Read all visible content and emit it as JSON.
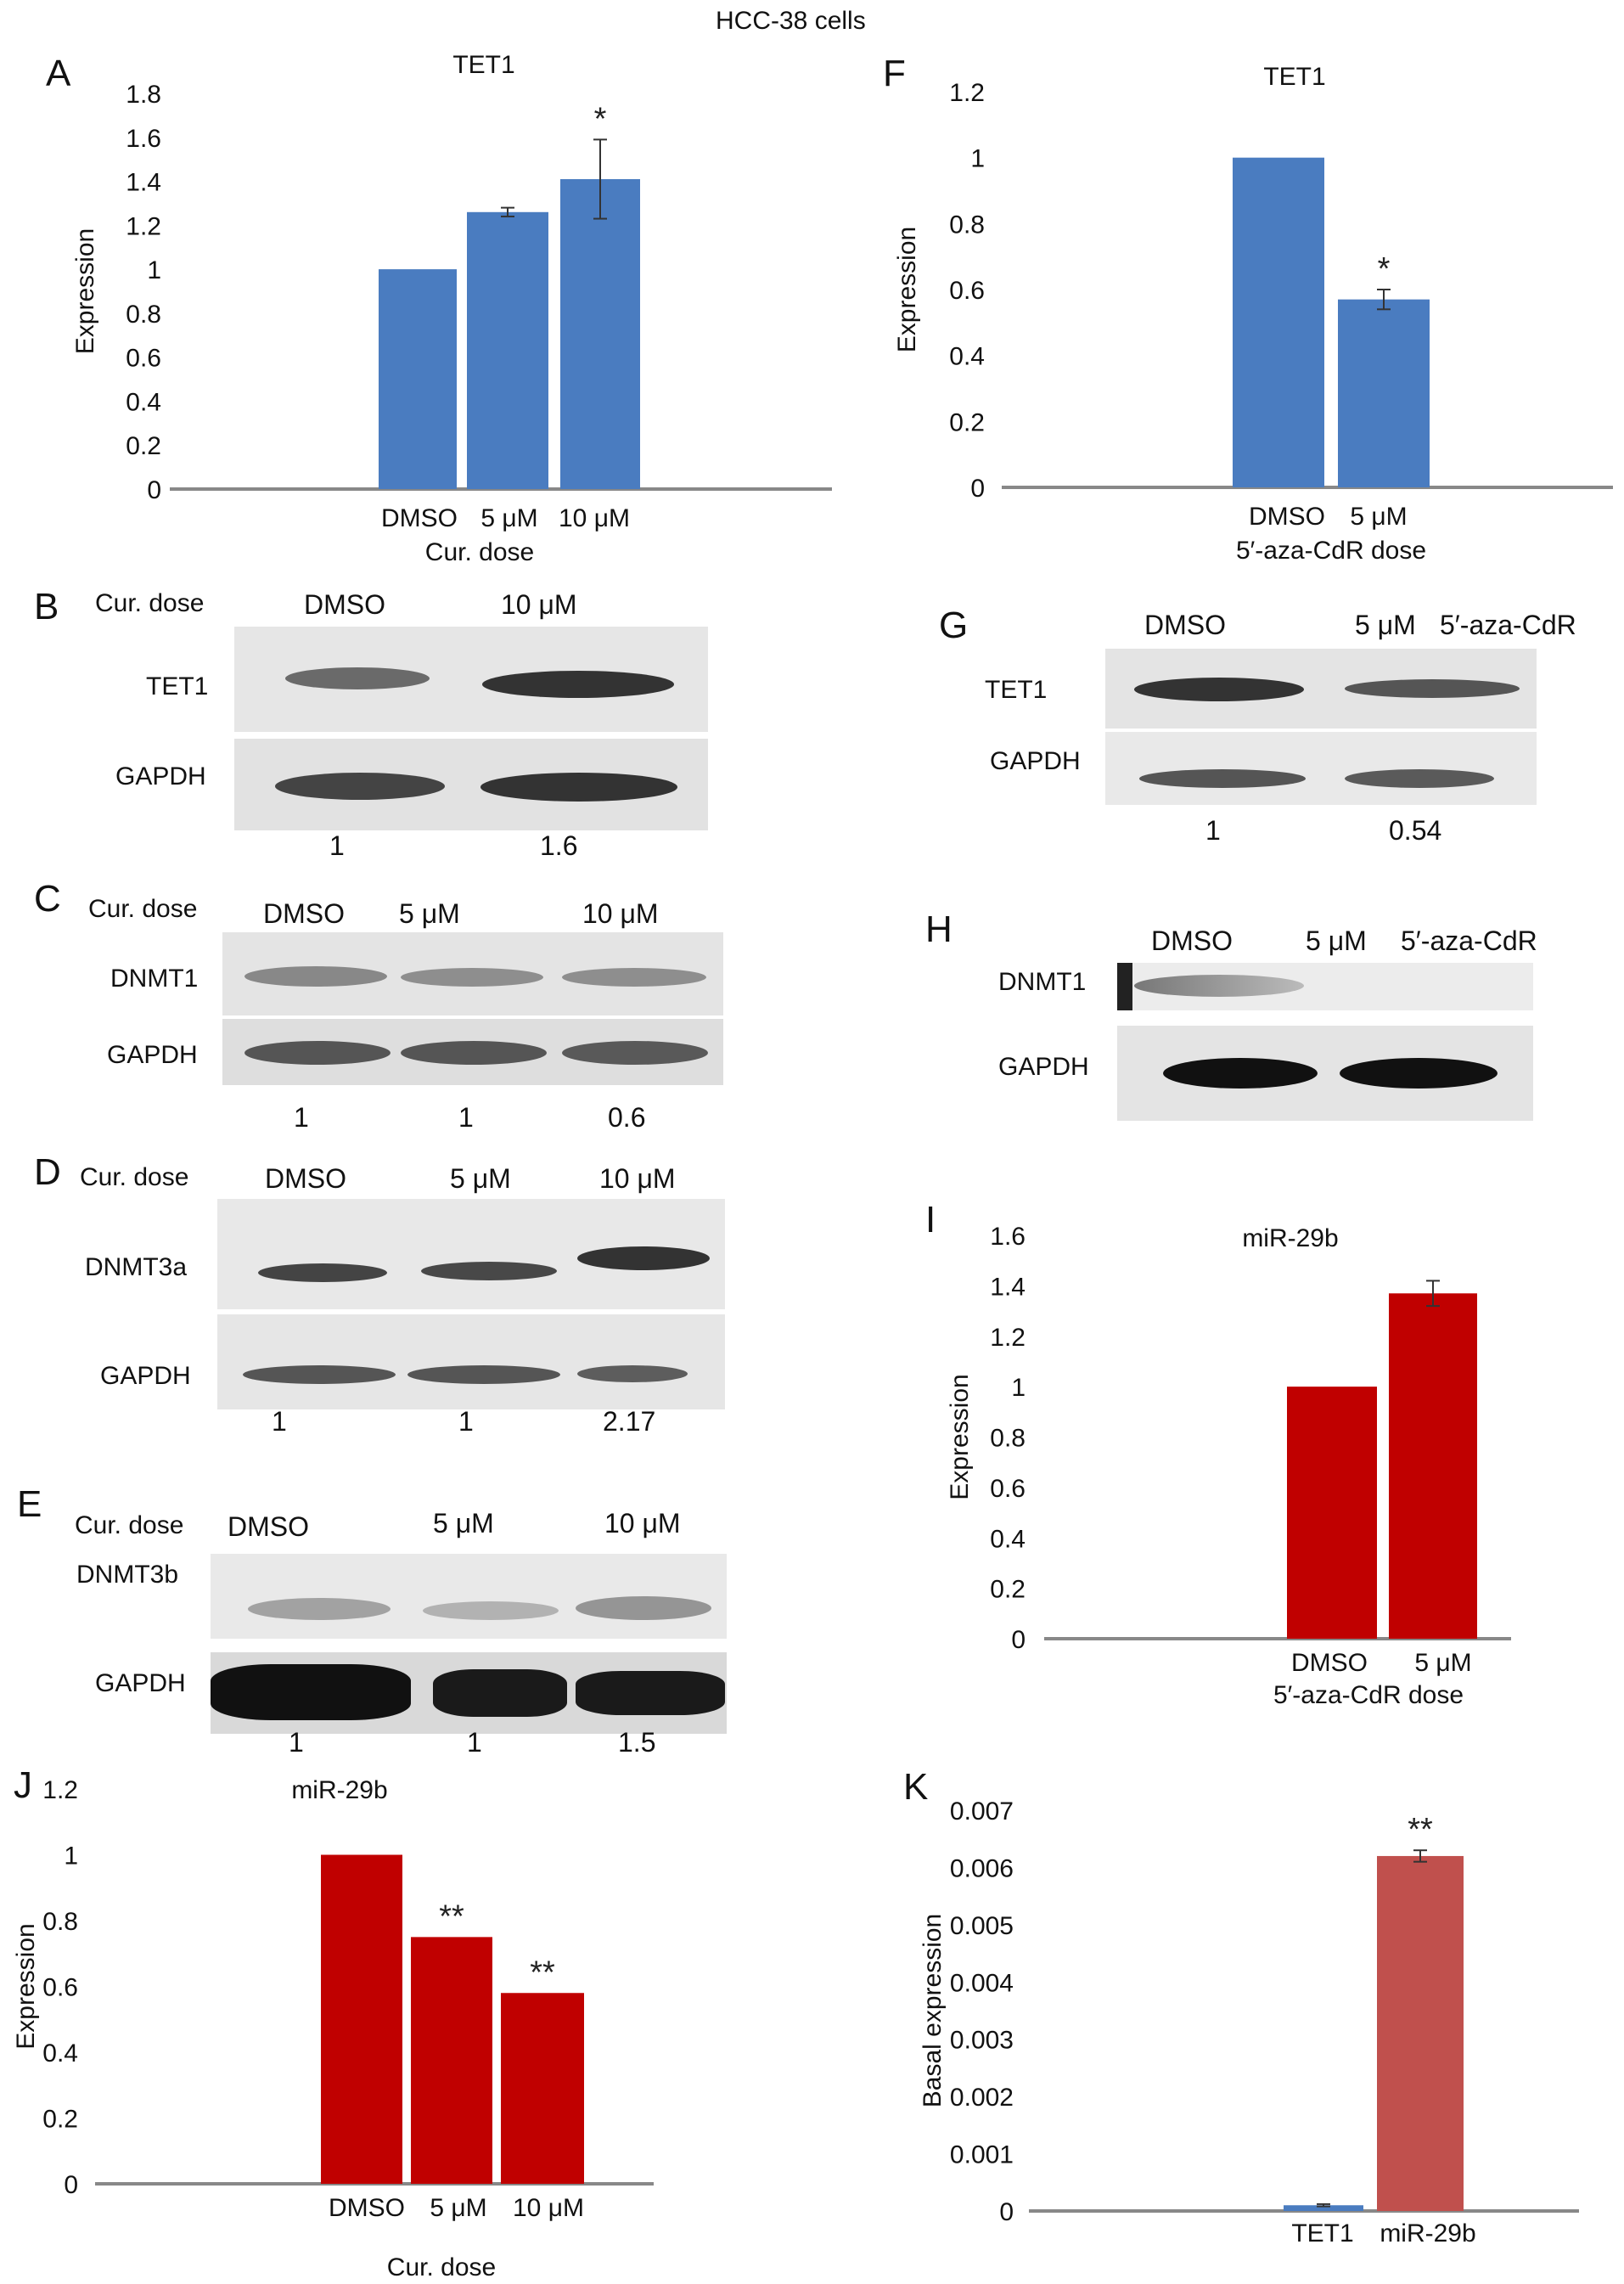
{
  "figure_title": "HCC-38 cells",
  "panel_letters": [
    "A",
    "B",
    "C",
    "D",
    "E",
    "F",
    "G",
    "H",
    "I",
    "J",
    "K"
  ],
  "colors": {
    "blue": "#4a7cc0",
    "red": "#c00000",
    "dark_red": "#c0504d",
    "axis": "#888888"
  },
  "chart_data": [
    {
      "id": "A",
      "type": "bar",
      "title": "TET1",
      "ylabel": "Expression",
      "xlabel": "Cur. dose",
      "categories": [
        "DMSO",
        "5 μM",
        "10 μM"
      ],
      "values": [
        1,
        1.26,
        1.41
      ],
      "errors": [
        0,
        0.02,
        0.18
      ],
      "significance": [
        "",
        "",
        "*"
      ],
      "ylim": [
        0,
        1.8
      ],
      "yticks": [
        "0",
        "0.2",
        "0.4",
        "0.6",
        "0.8",
        "1",
        "1.2",
        "1.4",
        "1.6",
        "1.8"
      ],
      "color": "#4a7cc0"
    },
    {
      "id": "F",
      "type": "bar",
      "title": "TET1",
      "ylabel": "Expression",
      "xlabel": "5′-aza-CdR dose",
      "categories": [
        "DMSO",
        "5 μM"
      ],
      "values": [
        1,
        0.57
      ],
      "errors": [
        0,
        0.03
      ],
      "significance": [
        "",
        "*"
      ],
      "ylim": [
        0,
        1.2
      ],
      "yticks": [
        "0",
        "0.2",
        "0.4",
        "0.6",
        "0.8",
        "1",
        "1.2"
      ],
      "color": "#4a7cc0"
    },
    {
      "id": "I",
      "type": "bar",
      "title": "miR-29b",
      "ylabel": "Expression",
      "xlabel": "5′-aza-CdR dose",
      "categories": [
        "DMSO",
        "5 μM"
      ],
      "values": [
        1,
        1.37
      ],
      "errors": [
        0,
        0.05
      ],
      "significance": [
        "",
        ""
      ],
      "ylim": [
        0,
        1.6
      ],
      "yticks": [
        "0",
        "0.2",
        "0.4",
        "0.6",
        "0.8",
        "1",
        "1.2",
        "1.4",
        "1.6"
      ],
      "color": "#c00000"
    },
    {
      "id": "J",
      "type": "bar",
      "title": "miR-29b",
      "ylabel": "Expression",
      "xlabel": "Cur. dose",
      "categories": [
        "DMSO",
        "5 μM",
        "10 μM"
      ],
      "values": [
        1,
        0.75,
        0.58
      ],
      "errors": [
        0,
        0,
        0
      ],
      "significance": [
        "",
        "**",
        "**"
      ],
      "ylim": [
        0,
        1.2
      ],
      "yticks": [
        "0",
        "0.2",
        "0.4",
        "0.6",
        "0.8",
        "1",
        "1.2"
      ],
      "color": "#c00000"
    },
    {
      "id": "K",
      "type": "bar",
      "title": "",
      "ylabel": "Basal expression",
      "xlabel": "",
      "categories": [
        "TET1",
        "miR-29b"
      ],
      "values": [
        0.0001,
        0.0062
      ],
      "errors": [
        2e-05,
        0.0001
      ],
      "significance": [
        "",
        "**"
      ],
      "ylim": [
        0,
        0.007
      ],
      "yticks": [
        "0",
        "0.001",
        "0.002",
        "0.003",
        "0.004",
        "0.005",
        "0.006",
        "0.007"
      ],
      "colors": [
        "#4a7cc0",
        "#c0504d"
      ]
    }
  ],
  "blots": {
    "B": {
      "header_label": "Cur. dose",
      "lanes": [
        "DMSO",
        "10 μM"
      ],
      "rows": [
        "TET1",
        "GAPDH"
      ],
      "quant": [
        "1",
        "1.6"
      ]
    },
    "C": {
      "header_label": "Cur. dose",
      "lanes": [
        "DMSO",
        "5 μM",
        "10 μM"
      ],
      "rows": [
        "DNMT1",
        "GAPDH"
      ],
      "quant": [
        "1",
        "1",
        "0.6"
      ]
    },
    "D": {
      "header_label": "Cur. dose",
      "lanes": [
        "DMSO",
        "5 μM",
        "10 μM"
      ],
      "rows": [
        "DNMT3a",
        "GAPDH"
      ],
      "quant": [
        "1",
        "1",
        "2.17"
      ]
    },
    "E": {
      "header_label": "Cur. dose",
      "lanes": [
        "DMSO",
        "5 μM",
        "10 μM"
      ],
      "rows": [
        "DNMT3b",
        "GAPDH"
      ],
      "quant": [
        "1",
        "1",
        "1.5"
      ]
    },
    "G": {
      "lanes": [
        "DMSO",
        "5 μM",
        "5′-aza-CdR"
      ],
      "rows": [
        "TET1",
        "GAPDH"
      ],
      "quant": [
        "1",
        "0.54"
      ]
    },
    "H": {
      "lanes": [
        "DMSO",
        "5 μM",
        "5′-aza-CdR"
      ],
      "rows": [
        "DNMT1",
        "GAPDH"
      ]
    }
  }
}
